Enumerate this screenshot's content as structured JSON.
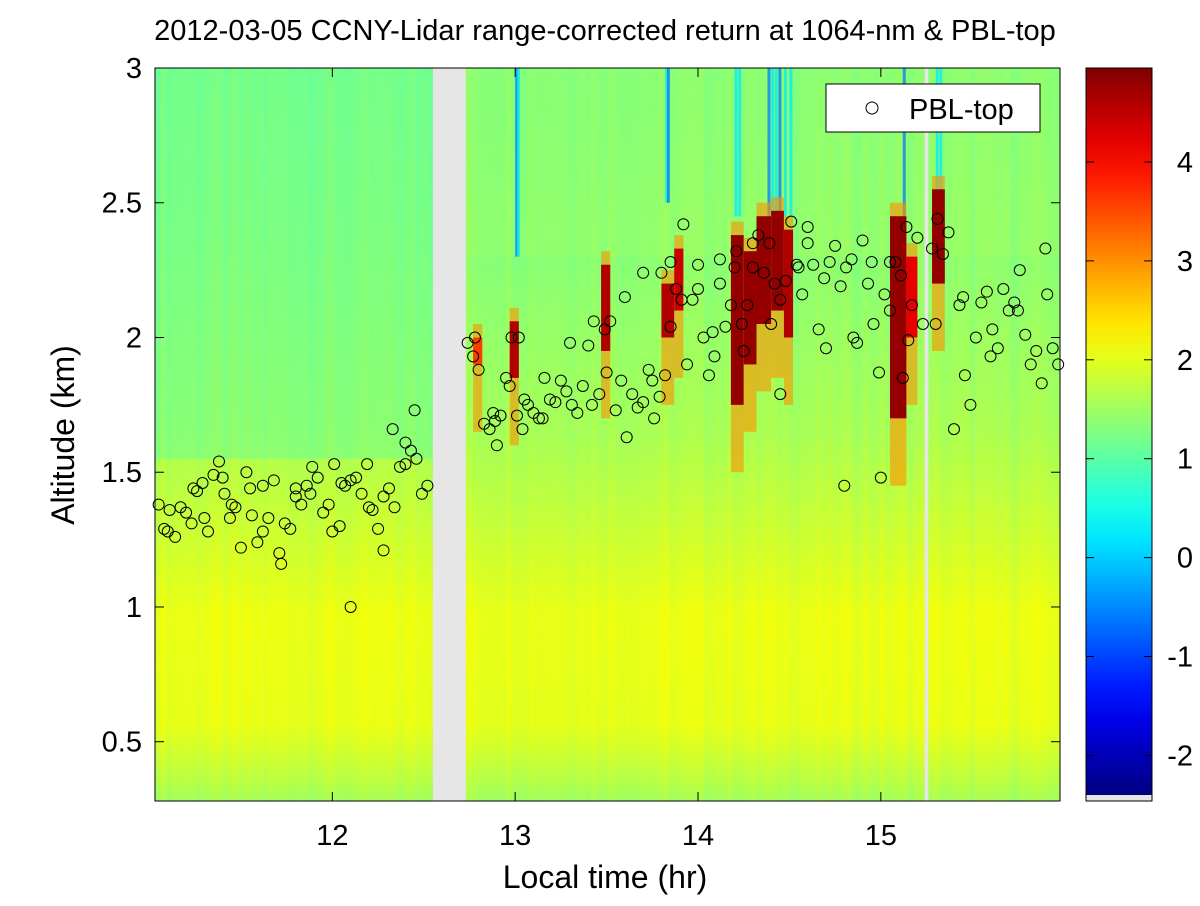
{
  "chart_data": {
    "type": "heatmap",
    "title": "2012-03-05 CCNY-Lidar range-corrected return at 1064-nm & PBL-top",
    "xlabel": "Local time (hr)",
    "ylabel": "Altitude (km)",
    "xlim": [
      11.03,
      15.98
    ],
    "ylim": [
      0.28,
      3.0
    ],
    "xticks": [
      12,
      13,
      14,
      15
    ],
    "xtick_labels": [
      "12",
      "13",
      "14",
      "15"
    ],
    "yticks": [
      0.5,
      1,
      1.5,
      2,
      2.5,
      3
    ],
    "ytick_labels": [
      "0.5",
      "1",
      "1.5",
      "2",
      "2.5",
      "3"
    ],
    "colorbar": {
      "clim": [
        -2.4,
        4.95
      ],
      "ticks": [
        -2,
        -1,
        0,
        1,
        2,
        3,
        4
      ],
      "tick_labels": [
        "-2",
        "-1",
        "0",
        "1",
        "2",
        "3",
        "4"
      ],
      "colormap": "jet"
    },
    "legend": {
      "label": "PBL-top",
      "marker": "circle",
      "position": "top-right"
    },
    "data_gaps": [
      [
        12.55,
        12.73
      ],
      [
        15.24,
        15.26
      ]
    ],
    "pbl_top": {
      "name": "PBL-top",
      "x": [
        11.05,
        11.08,
        11.11,
        11.14,
        11.17,
        11.2,
        11.23,
        11.26,
        11.29,
        11.32,
        11.35,
        11.38,
        11.41,
        11.44,
        11.47,
        11.5,
        11.53,
        11.56,
        11.59,
        11.62,
        11.65,
        11.68,
        11.71,
        11.74,
        11.77,
        11.8,
        11.83,
        11.86,
        11.89,
        11.92,
        11.95,
        11.98,
        12.01,
        12.04,
        12.07,
        12.1,
        12.13,
        12.16,
        12.19,
        12.22,
        12.25,
        12.28,
        12.31,
        12.34,
        12.37,
        12.4,
        12.43,
        12.46,
        12.49,
        12.52,
        11.1,
        11.24,
        11.4,
        11.55,
        11.72,
        11.88,
        12.0,
        12.1,
        12.2,
        12.33,
        12.45,
        12.28,
        11.3,
        11.45,
        11.62,
        11.8,
        12.05,
        12.4,
        12.74,
        12.77,
        12.8,
        12.83,
        12.86,
        12.89,
        12.92,
        12.95,
        12.98,
        13.01,
        13.04,
        13.07,
        13.1,
        13.13,
        13.16,
        13.19,
        13.22,
        13.25,
        13.28,
        13.31,
        13.34,
        13.37,
        13.4,
        13.43,
        13.46,
        13.49,
        13.52,
        13.55,
        13.58,
        13.61,
        13.64,
        13.67,
        13.7,
        13.73,
        13.76,
        13.79,
        13.82,
        13.85,
        13.88,
        13.91,
        13.94,
        13.97,
        14.0,
        14.03,
        14.06,
        14.09,
        14.12,
        14.15,
        14.18,
        14.21,
        14.24,
        14.27,
        14.3,
        14.33,
        14.36,
        14.39,
        14.42,
        14.45,
        14.48,
        14.51,
        14.54,
        14.57,
        14.6,
        14.63,
        14.66,
        14.69,
        14.72,
        14.75,
        14.78,
        14.81,
        14.84,
        14.87,
        14.9,
        14.93,
        14.96,
        14.99,
        15.02,
        15.05,
        15.08,
        15.11,
        15.14,
        15.17,
        15.2,
        15.23,
        15.28,
        15.31,
        15.34,
        15.37,
        15.4,
        15.43,
        15.46,
        15.49,
        15.52,
        15.55,
        15.58,
        15.61,
        15.64,
        15.67,
        15.7,
        15.73,
        15.76,
        15.79,
        15.82,
        15.85,
        15.88,
        15.91,
        15.94,
        15.97,
        12.78,
        12.88,
        12.97,
        13.05,
        13.15,
        13.3,
        13.42,
        13.5,
        13.6,
        13.75,
        13.85,
        14.0,
        14.12,
        14.2,
        14.3,
        14.45,
        14.55,
        14.7,
        14.85,
        14.95,
        15.05,
        15.12,
        15.3,
        15.45,
        15.6,
        15.75,
        15.9,
        13.8,
        13.92,
        14.25,
        14.4,
        14.6,
        15.0,
        15.15,
        12.9,
        13.02,
        13.7,
        14.08,
        14.8,
        15.5,
        15.95
      ],
      "y": [
        1.38,
        1.29,
        1.36,
        1.26,
        1.37,
        1.35,
        1.31,
        1.43,
        1.46,
        1.28,
        1.49,
        1.54,
        1.42,
        1.33,
        1.37,
        1.22,
        1.5,
        1.34,
        1.24,
        1.45,
        1.33,
        1.47,
        1.2,
        1.31,
        1.29,
        1.41,
        1.38,
        1.45,
        1.52,
        1.48,
        1.35,
        1.38,
        1.53,
        1.3,
        1.45,
        1.47,
        1.48,
        1.42,
        1.53,
        1.36,
        1.29,
        1.41,
        1.44,
        1.37,
        1.52,
        1.61,
        1.58,
        1.55,
        1.42,
        1.45,
        1.28,
        1.44,
        1.48,
        1.44,
        1.16,
        1.42,
        1.28,
        1.0,
        1.37,
        1.66,
        1.73,
        1.21,
        1.33,
        1.38,
        1.28,
        1.44,
        1.46,
        1.53,
        1.98,
        1.93,
        1.88,
        1.68,
        1.66,
        1.69,
        1.71,
        1.85,
        2.0,
        1.71,
        1.66,
        1.75,
        1.72,
        1.7,
        1.85,
        1.77,
        1.76,
        1.84,
        1.8,
        1.75,
        1.72,
        1.82,
        1.97,
        2.06,
        1.79,
        2.03,
        2.06,
        1.73,
        1.84,
        1.63,
        1.79,
        1.74,
        1.76,
        1.88,
        1.7,
        1.78,
        1.86,
        2.04,
        2.18,
        2.14,
        1.9,
        2.14,
        2.18,
        2.0,
        1.86,
        1.93,
        2.29,
        2.04,
        2.12,
        2.32,
        2.05,
        2.12,
        2.26,
        2.38,
        2.24,
        2.35,
        2.2,
        2.14,
        2.21,
        2.43,
        2.27,
        2.16,
        2.35,
        2.27,
        2.03,
        2.22,
        2.28,
        2.34,
        2.19,
        2.26,
        2.29,
        1.98,
        2.36,
        2.2,
        2.05,
        1.87,
        2.16,
        2.1,
        2.28,
        2.23,
        2.41,
        2.12,
        2.37,
        2.05,
        2.33,
        2.44,
        2.31,
        2.39,
        1.66,
        2.12,
        1.86,
        1.75,
        2.0,
        2.13,
        2.17,
        2.03,
        1.96,
        2.18,
        2.1,
        2.13,
        2.25,
        2.01,
        1.9,
        1.95,
        1.83,
        2.16,
        1.96,
        1.9,
        2.0,
        1.72,
        1.82,
        1.77,
        1.7,
        1.98,
        1.75,
        1.87,
        2.15,
        1.84,
        2.28,
        2.27,
        2.2,
        2.26,
        2.35,
        1.79,
        2.26,
        1.96,
        2.0,
        2.28,
        2.28,
        1.85,
        2.05,
        2.15,
        1.93,
        2.1,
        2.33,
        2.24,
        2.42,
        1.95,
        2.05,
        2.41,
        1.48,
        1.99,
        1.6,
        2.0,
        2.24,
        2.02,
        1.45
      ]
    }
  }
}
